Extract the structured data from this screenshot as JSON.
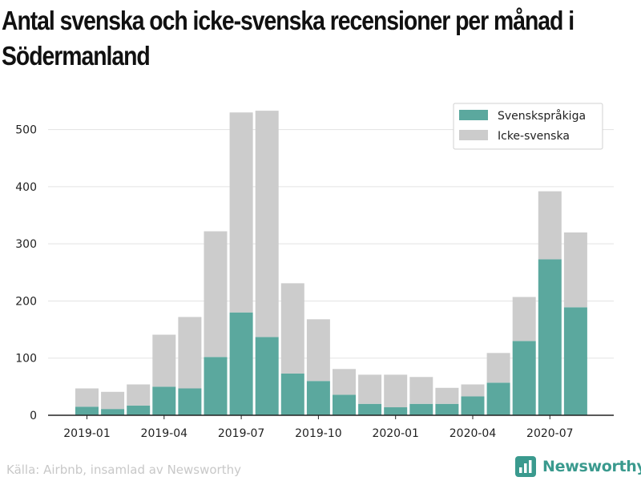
{
  "chart_data": {
    "type": "bar",
    "stacked": true,
    "title": "Antal svenska och icke-svenska recensioner per månad i Södermanland",
    "xlabel": "",
    "ylabel": "",
    "categories": [
      "2019-01",
      "2019-02",
      "2019-03",
      "2019-04",
      "2019-05",
      "2019-06",
      "2019-07",
      "2019-08",
      "2019-09",
      "2019-10",
      "2019-11",
      "2019-12",
      "2020-01",
      "2020-02",
      "2020-03",
      "2020-04",
      "2020-05",
      "2020-06",
      "2020-07",
      "2020-08"
    ],
    "x_tick_labels": [
      "2019-01",
      "2019-04",
      "2019-07",
      "2019-10",
      "2020-01",
      "2020-04",
      "2020-07"
    ],
    "y_ticks": [
      0,
      100,
      200,
      300,
      400,
      500
    ],
    "ylim": [
      0,
      550
    ],
    "grid": true,
    "legend_position": "top-right",
    "series": [
      {
        "name": "Svenskspråkiga",
        "color": "#5ba89e",
        "values": [
          15,
          11,
          17,
          50,
          47,
          102,
          180,
          137,
          73,
          60,
          36,
          20,
          14,
          20,
          20,
          33,
          57,
          130,
          273,
          189
        ]
      },
      {
        "name": "Icke-svenska",
        "color": "#cccccc",
        "values": [
          32,
          30,
          37,
          91,
          125,
          220,
          350,
          396,
          158,
          108,
          45,
          51,
          57,
          47,
          28,
          21,
          52,
          77,
          119,
          131
        ]
      }
    ]
  },
  "footer": {
    "source": "Källa: Airbnb, insamlad av Newsworthy",
    "brand": "Newsworthy",
    "brand_color": "#3a9a8e",
    "brand_icon": "bar-chart-logo-icon"
  }
}
